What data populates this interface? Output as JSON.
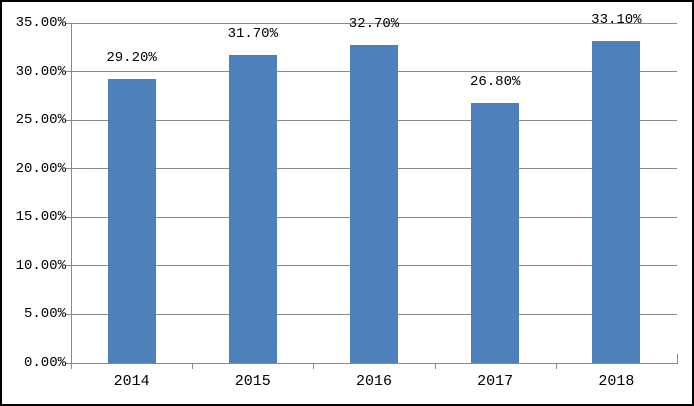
{
  "chart_data": {
    "type": "bar",
    "title": "",
    "xlabel": "",
    "ylabel": "",
    "categories": [
      "2014",
      "2015",
      "2016",
      "2017",
      "2018"
    ],
    "values": [
      29.2,
      31.7,
      32.7,
      26.8,
      33.1
    ],
    "data_labels": [
      "29.20%",
      "31.70%",
      "32.70%",
      "26.80%",
      "33.10%"
    ],
    "y_tick_labels": [
      "0.00%",
      "5.00%",
      "10.00%",
      "15.00%",
      "20.00%",
      "25.00%",
      "30.00%",
      "35.00%"
    ],
    "y_tick_values": [
      0,
      5,
      10,
      15,
      20,
      25,
      30,
      35
    ],
    "ylim": [
      0,
      35
    ],
    "grid": true,
    "legend_position": "none",
    "colors": {
      "bar_fill": "#4E81BC",
      "gridline": "#898989",
      "axis": "#898989",
      "label_text": "#000000",
      "background": "#ffffff",
      "outer_border": "#000000"
    }
  }
}
